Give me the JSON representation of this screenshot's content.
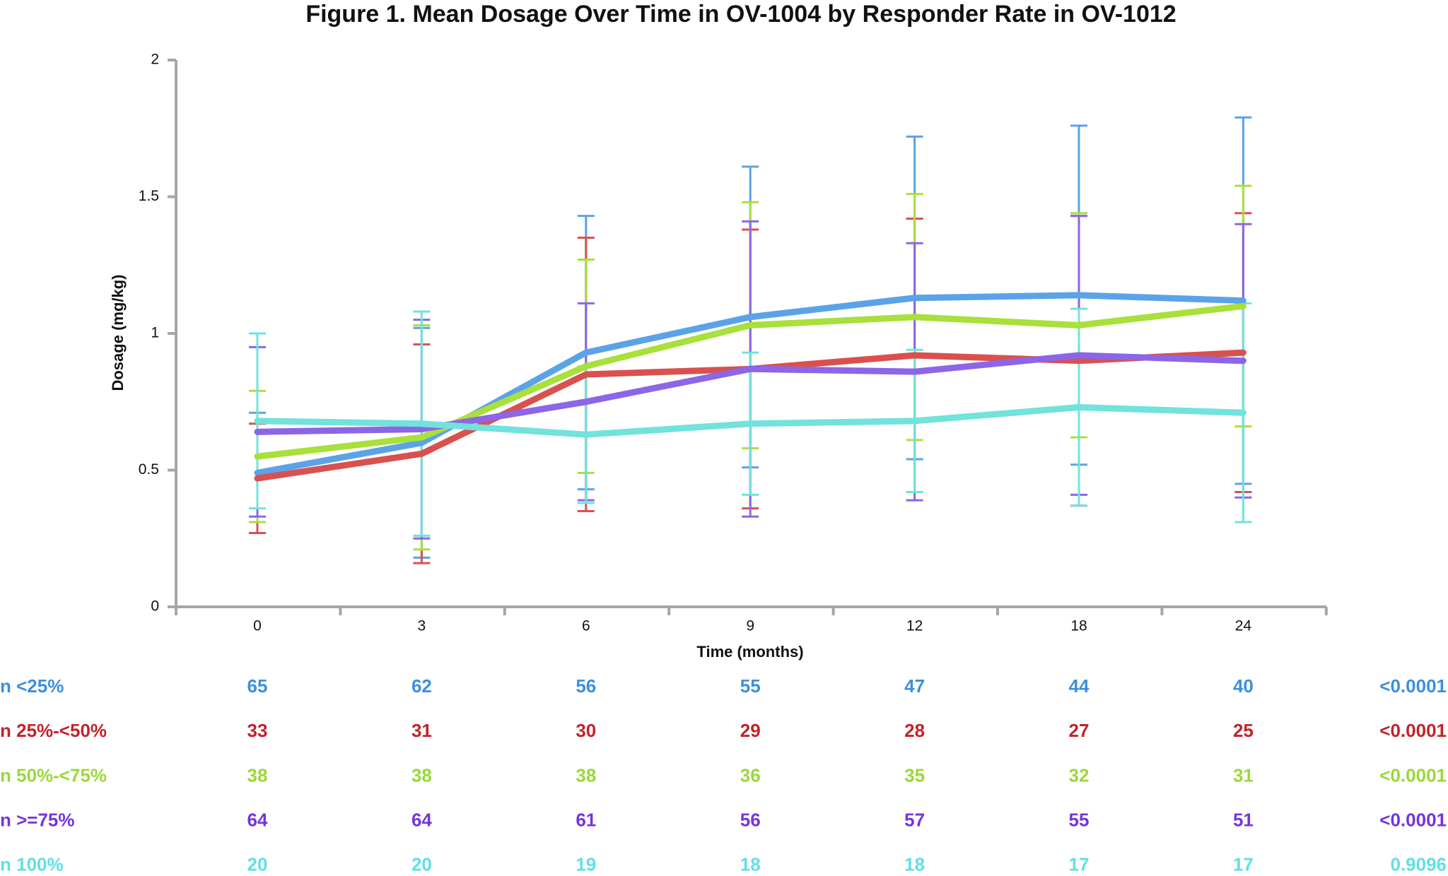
{
  "chart_data": {
    "type": "line",
    "title": "Figure 1. Mean Dosage Over Time in OV-1004 by Responder Rate in OV-1012",
    "x_label": "Time (months)",
    "y_label": "Dosage (mg/kg)",
    "categories": [
      "0",
      "3",
      "6",
      "9",
      "12",
      "18",
      "24"
    ],
    "ylim": [
      0,
      2
    ],
    "yticks": [
      0,
      0.5,
      1,
      1.5,
      2
    ],
    "axis_color": "#a6a6a6",
    "series": [
      {
        "color": "#5ba3e8",
        "text_color": "#3b8fdf",
        "values": [
          0.49,
          0.6,
          0.93,
          1.06,
          1.13,
          1.14,
          1.12
        ],
        "errors": [
          0.22,
          0.42,
          0.5,
          0.55,
          0.59,
          0.62,
          0.67
        ],
        "n_label": "n <25%",
        "n": [
          65,
          62,
          56,
          55,
          47,
          44,
          40
        ],
        "p_value": "<0.0001"
      },
      {
        "color": "#d9514f",
        "text_color": "#c4222a",
        "values": [
          0.47,
          0.56,
          0.85,
          0.87,
          0.92,
          0.9,
          0.93
        ],
        "errors": [
          0.2,
          0.4,
          0.5,
          0.51,
          0.5,
          0.53,
          0.51
        ],
        "n_label": "n 25%-<50%",
        "n": [
          33,
          31,
          30,
          29,
          28,
          27,
          25
        ],
        "p_value": "<0.0001"
      },
      {
        "color": "#a8e03c",
        "text_color": "#9ad83a",
        "values": [
          0.55,
          0.62,
          0.88,
          1.03,
          1.06,
          1.03,
          1.1
        ],
        "errors": [
          0.24,
          0.41,
          0.39,
          0.45,
          0.45,
          0.41,
          0.44
        ],
        "n_label": "n 50%-<75%",
        "n": [
          38,
          38,
          38,
          36,
          35,
          32,
          31
        ],
        "p_value": "<0.0001"
      },
      {
        "color": "#8c66e6",
        "text_color": "#7434df",
        "values": [
          0.64,
          0.65,
          0.75,
          0.87,
          0.86,
          0.92,
          0.9
        ],
        "errors": [
          0.31,
          0.4,
          0.36,
          0.54,
          0.47,
          0.51,
          0.5
        ],
        "n_label": "n >=75%",
        "n": [
          64,
          64,
          61,
          56,
          57,
          55,
          51
        ],
        "p_value": "<0.0001"
      },
      {
        "color": "#72e2dc",
        "text_color": "#5fe0e6",
        "values": [
          0.68,
          0.67,
          0.63,
          0.67,
          0.68,
          0.73,
          0.71
        ],
        "errors": [
          0.32,
          0.41,
          0.25,
          0.26,
          0.26,
          0.36,
          0.4
        ],
        "n_label": "n 100%",
        "n": [
          20,
          20,
          19,
          18,
          18,
          17,
          17
        ],
        "p_value": "0.9096"
      }
    ]
  }
}
